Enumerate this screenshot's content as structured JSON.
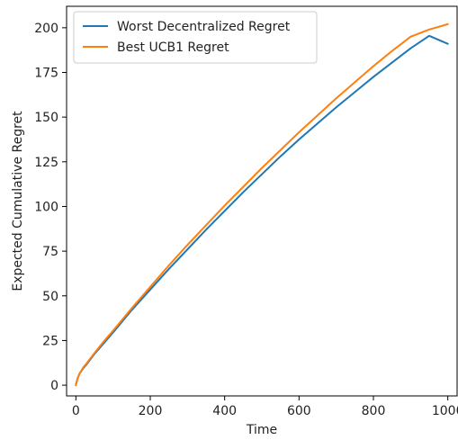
{
  "chart_data": {
    "type": "line",
    "title": "",
    "xlabel": "Time",
    "ylabel": "Expected Cumulative Regret",
    "xlim": [
      -25,
      1025
    ],
    "ylim": [
      -6,
      212
    ],
    "xticks": [
      0,
      200,
      400,
      600,
      800,
      1000
    ],
    "yticks": [
      0,
      25,
      50,
      75,
      100,
      125,
      150,
      175,
      200
    ],
    "grid": false,
    "legend_position": "top-left",
    "series": [
      {
        "name": "Worst Decentralized Regret",
        "color": "#1f77b4",
        "x": [
          0,
          1,
          5,
          10,
          20,
          30,
          50,
          75,
          100,
          150,
          200,
          250,
          300,
          350,
          400,
          450,
          500,
          550,
          600,
          650,
          700,
          750,
          800,
          850,
          900,
          950,
          1000
        ],
        "y": [
          0,
          1,
          4,
          6.5,
          9.5,
          12,
          17.5,
          23.5,
          29.5,
          42,
          53.5,
          65,
          76,
          87,
          97.5,
          108,
          118,
          128,
          137.5,
          146.5,
          155.5,
          164,
          172.5,
          180.5,
          188.5,
          195.5,
          191
        ]
      },
      {
        "name": "Best UCB1 Regret",
        "color": "#ff7f0e",
        "x": [
          0,
          1,
          5,
          10,
          20,
          30,
          50,
          75,
          100,
          150,
          200,
          250,
          300,
          350,
          400,
          450,
          500,
          550,
          600,
          650,
          700,
          750,
          800,
          850,
          900,
          950,
          1000
        ],
        "y": [
          0,
          1,
          4,
          6.5,
          10,
          12.5,
          18,
          24.5,
          30.5,
          43,
          55,
          67,
          78.5,
          89.5,
          100.5,
          111,
          121.5,
          131.5,
          141.5,
          151,
          160.5,
          169.5,
          178.5,
          187,
          195,
          199,
          202
        ]
      }
    ]
  }
}
